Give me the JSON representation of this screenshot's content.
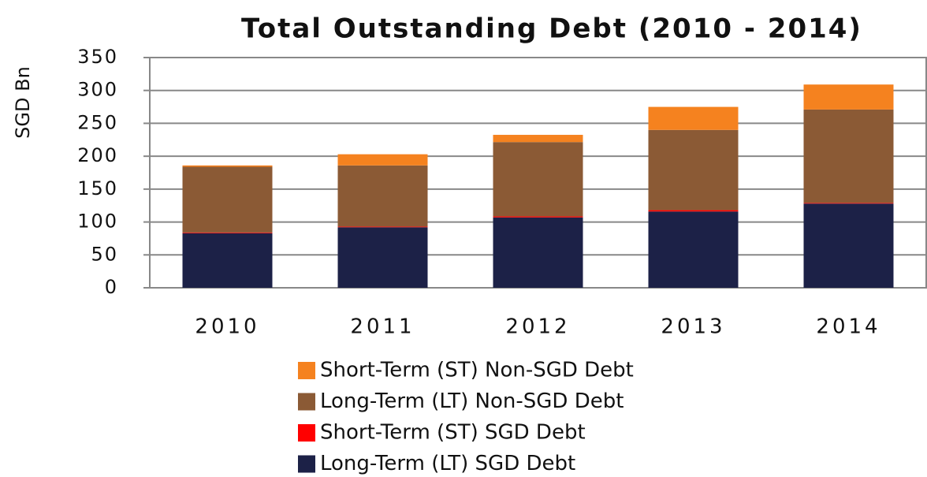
{
  "chart_data": {
    "type": "stacked_bar",
    "title": "Total Outstanding Debt (2010 - 2014)",
    "y_label": "SGD Bn",
    "categories": [
      "2010",
      "2011",
      "2012",
      "2013",
      "2014"
    ],
    "series": [
      {
        "name": "Short-Term (ST) Non-SGD Debt",
        "color": "#f5821f",
        "values": [
          2,
          17,
          11,
          35,
          38
        ]
      },
      {
        "name": "Long-Term (LT) Non-SGD Debt",
        "color": "#8b5a35",
        "values": [
          100,
          93,
          113,
          122,
          142
        ]
      },
      {
        "name": "Short-Term (ST) SGD Debt",
        "color": "#ff0000",
        "values": [
          1,
          1,
          1.5,
          2,
          1
        ]
      },
      {
        "name": "Long-Term (LT) SGD Debt",
        "color": "#1c2147",
        "values": [
          83,
          92,
          107,
          116,
          128
        ]
      }
    ],
    "ylim": [
      0,
      350
    ],
    "yticks": [
      0,
      50,
      100,
      150,
      200,
      250,
      300,
      350
    ],
    "grid": true
  }
}
